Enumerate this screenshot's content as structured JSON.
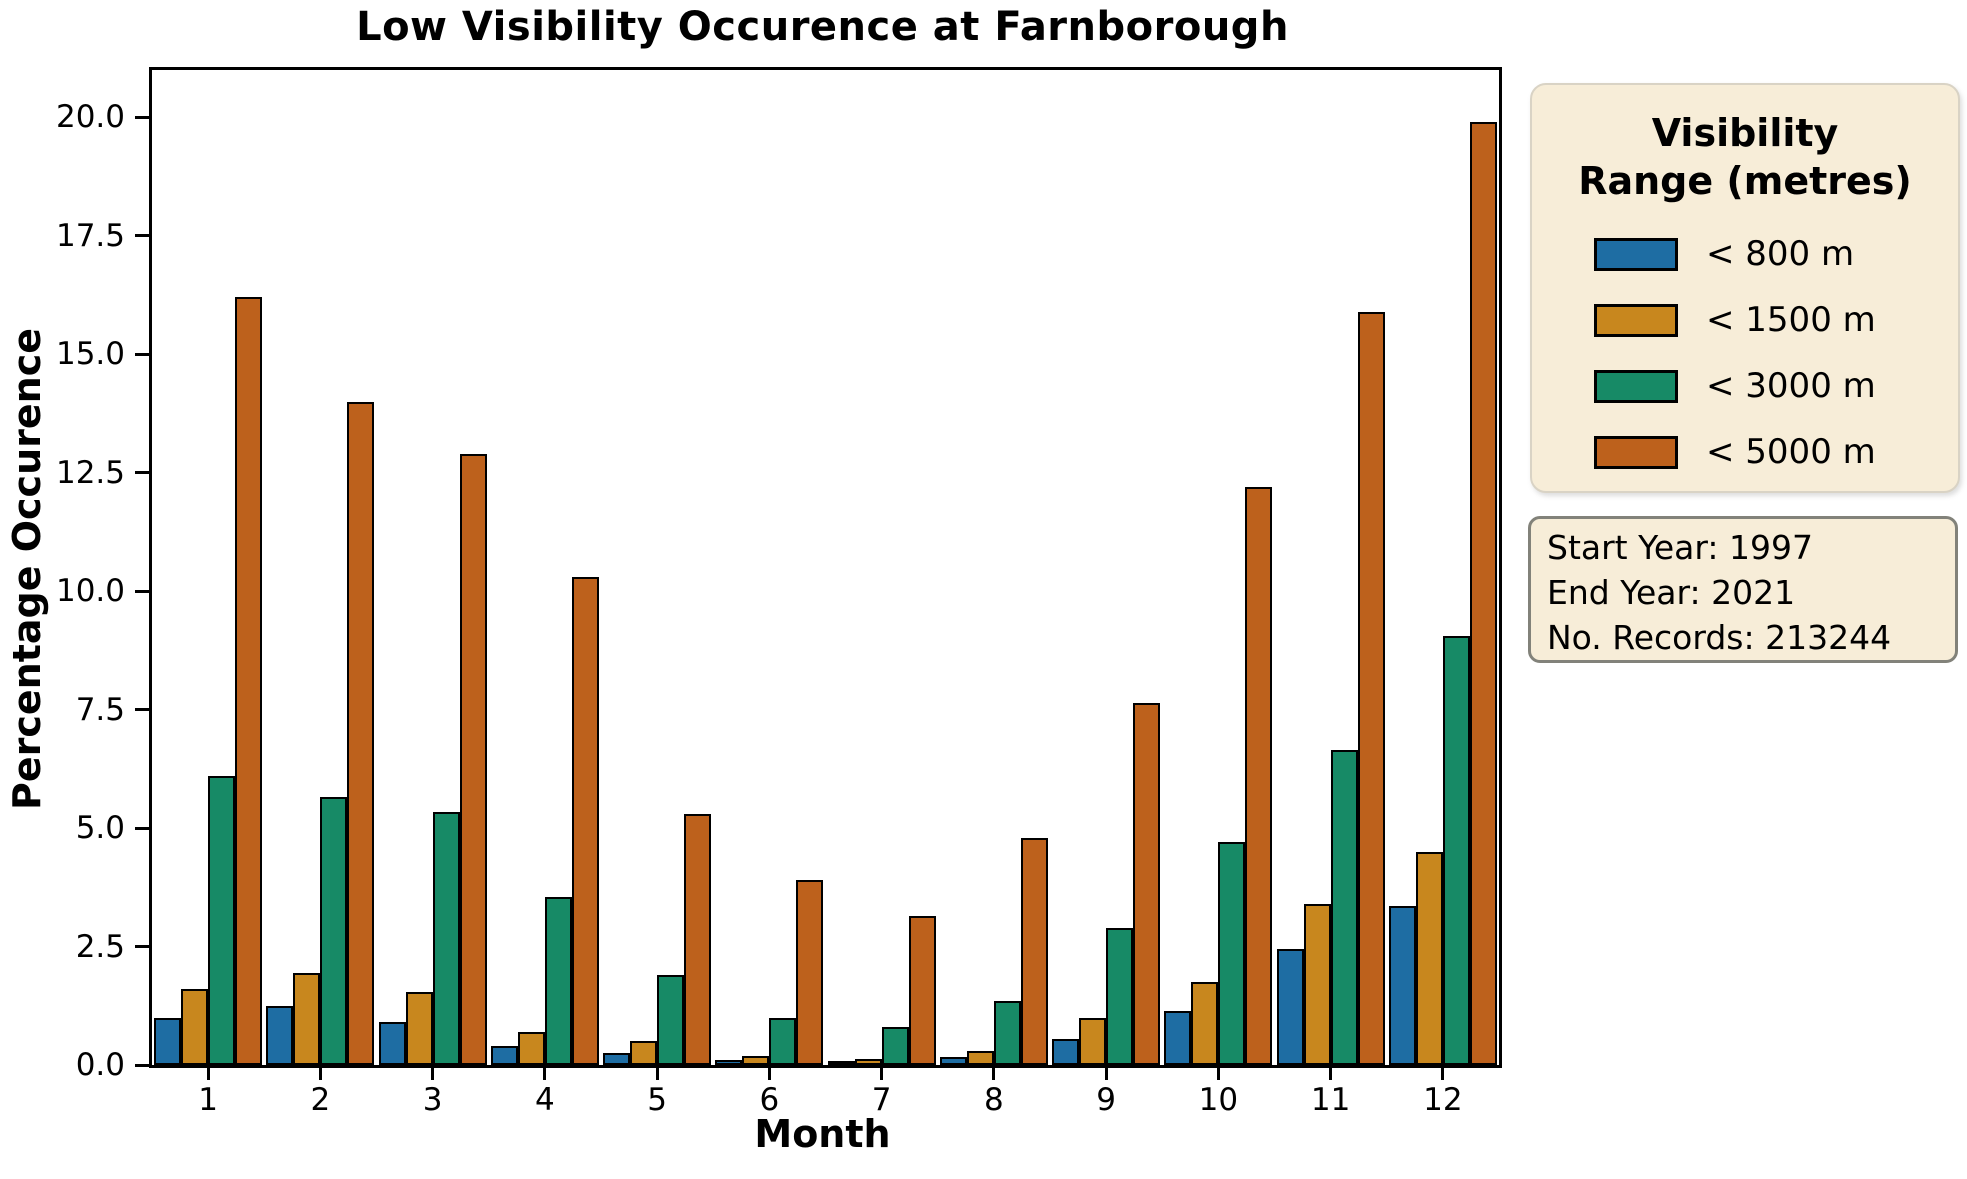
{
  "chart_data": {
    "type": "bar",
    "title": "Low Visibility Occurence at Farnborough",
    "xlabel": "Month",
    "ylabel": "Percentage Occurence",
    "categories": [
      "1",
      "2",
      "3",
      "4",
      "5",
      "6",
      "7",
      "8",
      "9",
      "10",
      "11",
      "12"
    ],
    "series": [
      {
        "name": "< 800 m",
        "color": "#1e6da3",
        "values": [
          1.0,
          1.25,
          0.9,
          0.4,
          0.25,
          0.1,
          0.05,
          0.17,
          0.55,
          1.15,
          2.45,
          3.35
        ]
      },
      {
        "name": "< 1500 m",
        "color": "#c8871e",
        "values": [
          1.6,
          1.95,
          1.55,
          0.7,
          0.5,
          0.2,
          0.12,
          0.3,
          1.0,
          1.75,
          3.4,
          4.5
        ]
      },
      {
        "name": "< 3000 m",
        "color": "#178a66",
        "values": [
          6.1,
          5.65,
          5.35,
          3.55,
          1.9,
          1.0,
          0.8,
          1.35,
          2.9,
          4.7,
          6.65,
          9.05
        ]
      },
      {
        "name": "< 5000 m",
        "color": "#bd611c",
        "values": [
          16.2,
          14.0,
          12.9,
          10.3,
          5.3,
          3.9,
          3.15,
          4.8,
          7.65,
          12.2,
          15.9,
          19.9
        ]
      }
    ],
    "ylim": [
      0,
      21
    ],
    "yticks": [
      "0.0",
      "2.5",
      "5.0",
      "7.5",
      "10.0",
      "12.5",
      "15.0",
      "17.5",
      "20.0"
    ],
    "grid": false,
    "legend_position": "outside-upper-right",
    "bar_edge_color": "#000000"
  },
  "legend": {
    "title_lines": [
      "Visibility",
      "Range (metres)"
    ],
    "background": "#f7edd8"
  },
  "info_box": {
    "lines": [
      "Start Year: 1997",
      "End Year: 2021",
      "No. Records: 213244"
    ],
    "background": "#f7edd8"
  }
}
